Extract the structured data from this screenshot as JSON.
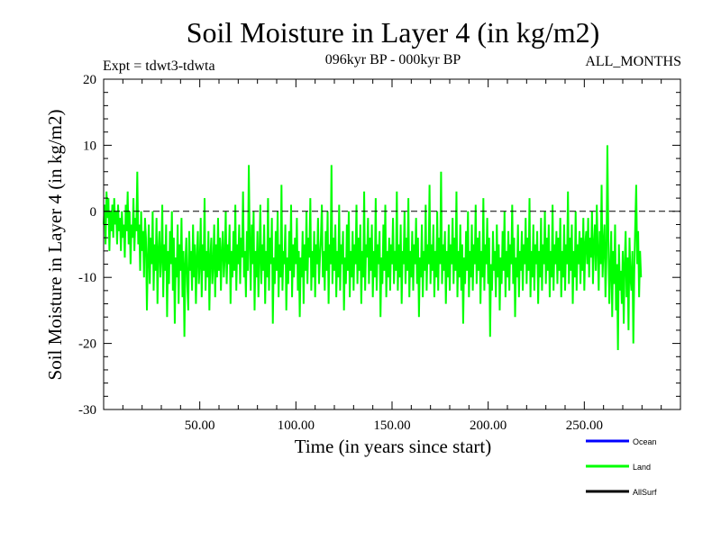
{
  "chart_data": {
    "type": "line",
    "title": "Soil Moisture in Layer 4 (in kg/m2)",
    "subtitle_left": "Expt = tdwt3-tdwta",
    "subtitle_center": "096kyr BP - 000kyr BP",
    "subtitle_right": "ALL_MONTHS",
    "xlabel": "Time (in years since start)",
    "ylabel": "Soil Moisture in Layer 4 (in kg/m2)",
    "xlim": [
      0,
      300
    ],
    "ylim": [
      -30,
      20
    ],
    "x_ticks": [
      50,
      100,
      150,
      200,
      250
    ],
    "x_tick_labels": [
      "50.00",
      "100.00",
      "150.00",
      "200.00",
      "250.00"
    ],
    "y_ticks": [
      -30,
      -20,
      -10,
      0,
      10,
      20
    ],
    "y_tick_labels": [
      "-30",
      "-20",
      "-10",
      "0",
      "10",
      "20"
    ],
    "reference_line": 0,
    "series": [
      {
        "name": "Land",
        "color": "#00ff00",
        "x_start": 0,
        "x_step": 0.5,
        "values": [
          -2,
          1,
          -5,
          3,
          -1,
          2,
          -6,
          0,
          -3,
          1,
          -4,
          2,
          -2,
          0,
          -5,
          1,
          -3,
          -1,
          -6,
          0,
          -4,
          -2,
          -7,
          1,
          -3,
          3,
          -5,
          0,
          -8,
          -2,
          -4,
          2,
          -6,
          -1,
          -3,
          6,
          -5,
          -2,
          -9,
          0,
          -6,
          -3,
          -10,
          -1,
          -4,
          -15,
          -7,
          -2,
          -11,
          -4,
          -8,
          0,
          -12,
          -5,
          -9,
          -1,
          -14,
          -6,
          -3,
          -10,
          -7,
          1,
          -13,
          -5,
          -9,
          -2,
          -16,
          -6,
          -11,
          -3,
          -8,
          0,
          -12,
          -4,
          -17,
          -7,
          -10,
          -2,
          -14,
          -5,
          -9,
          -1,
          -13,
          -6,
          -19,
          -8,
          -4,
          -11,
          -15,
          -3,
          -9,
          -6,
          -12,
          -2,
          -10,
          -5,
          -14,
          -7,
          -3,
          -11,
          -8,
          -1,
          -13,
          -5,
          -9,
          2,
          -12,
          -6,
          -10,
          -3,
          -15,
          -7,
          -4,
          -11,
          -8,
          -2,
          -13,
          -5,
          -10,
          -1,
          -9,
          -4,
          -12,
          -6,
          -3,
          -10,
          -7,
          0,
          -11,
          -5,
          -8,
          -2,
          -14,
          -6,
          -10,
          -3,
          -9,
          1,
          -12,
          -5,
          -8,
          -2,
          -11,
          -4,
          -7,
          3,
          -10,
          -6,
          -13,
          -3,
          -9,
          7,
          -5,
          -12,
          -2,
          -8,
          0,
          -15,
          -6,
          -10,
          -3,
          -13,
          -7,
          1,
          -11,
          -5,
          -9,
          -2,
          -14,
          -6,
          -10,
          2,
          -12,
          -4,
          -8,
          -1,
          -17,
          -7,
          -11,
          -3,
          -9,
          0,
          -13,
          -5,
          -10,
          4,
          -12,
          -6,
          -8,
          -2,
          -15,
          -7,
          -11,
          -3,
          -9,
          1,
          -13,
          -5,
          -10,
          -4,
          -8,
          -1,
          -12,
          -6,
          -16,
          -7,
          -10,
          -3,
          -14,
          -5,
          -9,
          0,
          -11,
          -4,
          -7,
          2,
          -12,
          -6,
          -10,
          -3,
          -13,
          -5,
          -8,
          -1,
          -11,
          -7,
          -4,
          1,
          -10,
          -6,
          -12,
          -3,
          -9,
          0,
          -14,
          -5,
          -8,
          7,
          -11,
          -4,
          -9,
          -2,
          -13,
          -6,
          -10,
          1,
          -12,
          -5,
          -8,
          -3,
          -15,
          -7,
          -11,
          -2,
          -9,
          0,
          -13,
          -6,
          -10,
          -3,
          -12,
          -5,
          -8,
          1,
          -11,
          -4,
          -9,
          -2,
          -14,
          -6,
          -10,
          3,
          -12,
          -5,
          -7,
          -1,
          -11,
          -4,
          -9,
          -2,
          -13,
          -6,
          -10,
          2,
          -12,
          -5,
          -8,
          -3,
          -16,
          -7,
          -11,
          -2,
          -9,
          1,
          -13,
          -6,
          -10,
          -4,
          -12,
          -5,
          -8,
          -1,
          -11,
          -6,
          -9,
          3,
          -12,
          -5,
          -10,
          -2,
          -14,
          -6,
          -8,
          0,
          -11,
          -4,
          -9,
          2,
          -13,
          -6,
          -10,
          -3,
          -12,
          -5,
          -8,
          -1,
          -11,
          -4,
          -16,
          -7,
          -10,
          -2,
          -13,
          -6,
          -9,
          1,
          -12,
          -5,
          -8,
          4,
          -11,
          -5,
          -9,
          -2,
          -13,
          -6,
          -10,
          0,
          -12,
          -4,
          -8,
          6,
          -11,
          -5,
          -9,
          -3,
          -14,
          -6,
          -10,
          -2,
          -12,
          -5,
          -8,
          -1,
          -11,
          -4,
          -9,
          3,
          -13,
          -6,
          -10,
          -2,
          -12,
          -5,
          -17,
          -7,
          -11,
          -3,
          -9,
          0,
          -13,
          -6,
          -10,
          -2,
          -12,
          -5,
          -8,
          1,
          -11,
          -4,
          -9,
          -3,
          -14,
          -6,
          -10,
          2,
          -12,
          -5,
          -8,
          -1,
          -11,
          -4,
          -19,
          -8,
          -12,
          -3,
          -9,
          -6,
          -13,
          -2,
          -10,
          -5,
          -15,
          -7,
          -11,
          -3,
          -9,
          0,
          -13,
          -6,
          -10,
          -3,
          -12,
          -5,
          -8,
          1,
          -11,
          -4,
          -16,
          -7,
          -10,
          -2,
          -13,
          -6,
          -9,
          -3,
          -12,
          -5,
          -8,
          -1,
          -11,
          -4,
          -9,
          2,
          -13,
          -6,
          -10,
          -2,
          -12,
          -5,
          -8,
          -3,
          -14,
          -6,
          -10,
          -1,
          -12,
          -5,
          -8,
          0,
          -11,
          -4,
          -9,
          -2,
          -13,
          -6,
          -10,
          1,
          -12,
          -5,
          -8,
          -3,
          -11,
          -4,
          -9,
          -1,
          -13,
          -6,
          -10,
          -2,
          -12,
          -5,
          -8,
          3,
          -11,
          -4,
          -9,
          -2,
          -14,
          -6,
          -10,
          0,
          -12,
          -5,
          -8,
          -3,
          -11,
          -4,
          -9,
          -1,
          -12,
          -5,
          -3,
          -8,
          -1,
          -10,
          -4,
          -7,
          0,
          -11,
          -5,
          -2,
          -9,
          1,
          -6,
          -12,
          -3,
          -8,
          4,
          -10,
          -5,
          -2,
          -13,
          -7,
          10,
          -4,
          -14,
          -9,
          -3,
          -16,
          -6,
          -11,
          -2,
          -15,
          -8,
          -21,
          -5,
          -12,
          -9,
          -14,
          -6,
          -17,
          -8,
          -3,
          -13,
          -7,
          -18,
          -4,
          -10,
          -12,
          -6,
          -20,
          -9,
          -2,
          4,
          -8,
          -3,
          -13,
          -6,
          -10
        ]
      }
    ],
    "legend": {
      "position": "bottom-right",
      "entries": [
        {
          "label": "Ocean",
          "color": "#0000ff"
        },
        {
          "label": "Land",
          "color": "#00ff00"
        },
        {
          "label": "AllSurf",
          "color": "#000000"
        }
      ]
    }
  }
}
